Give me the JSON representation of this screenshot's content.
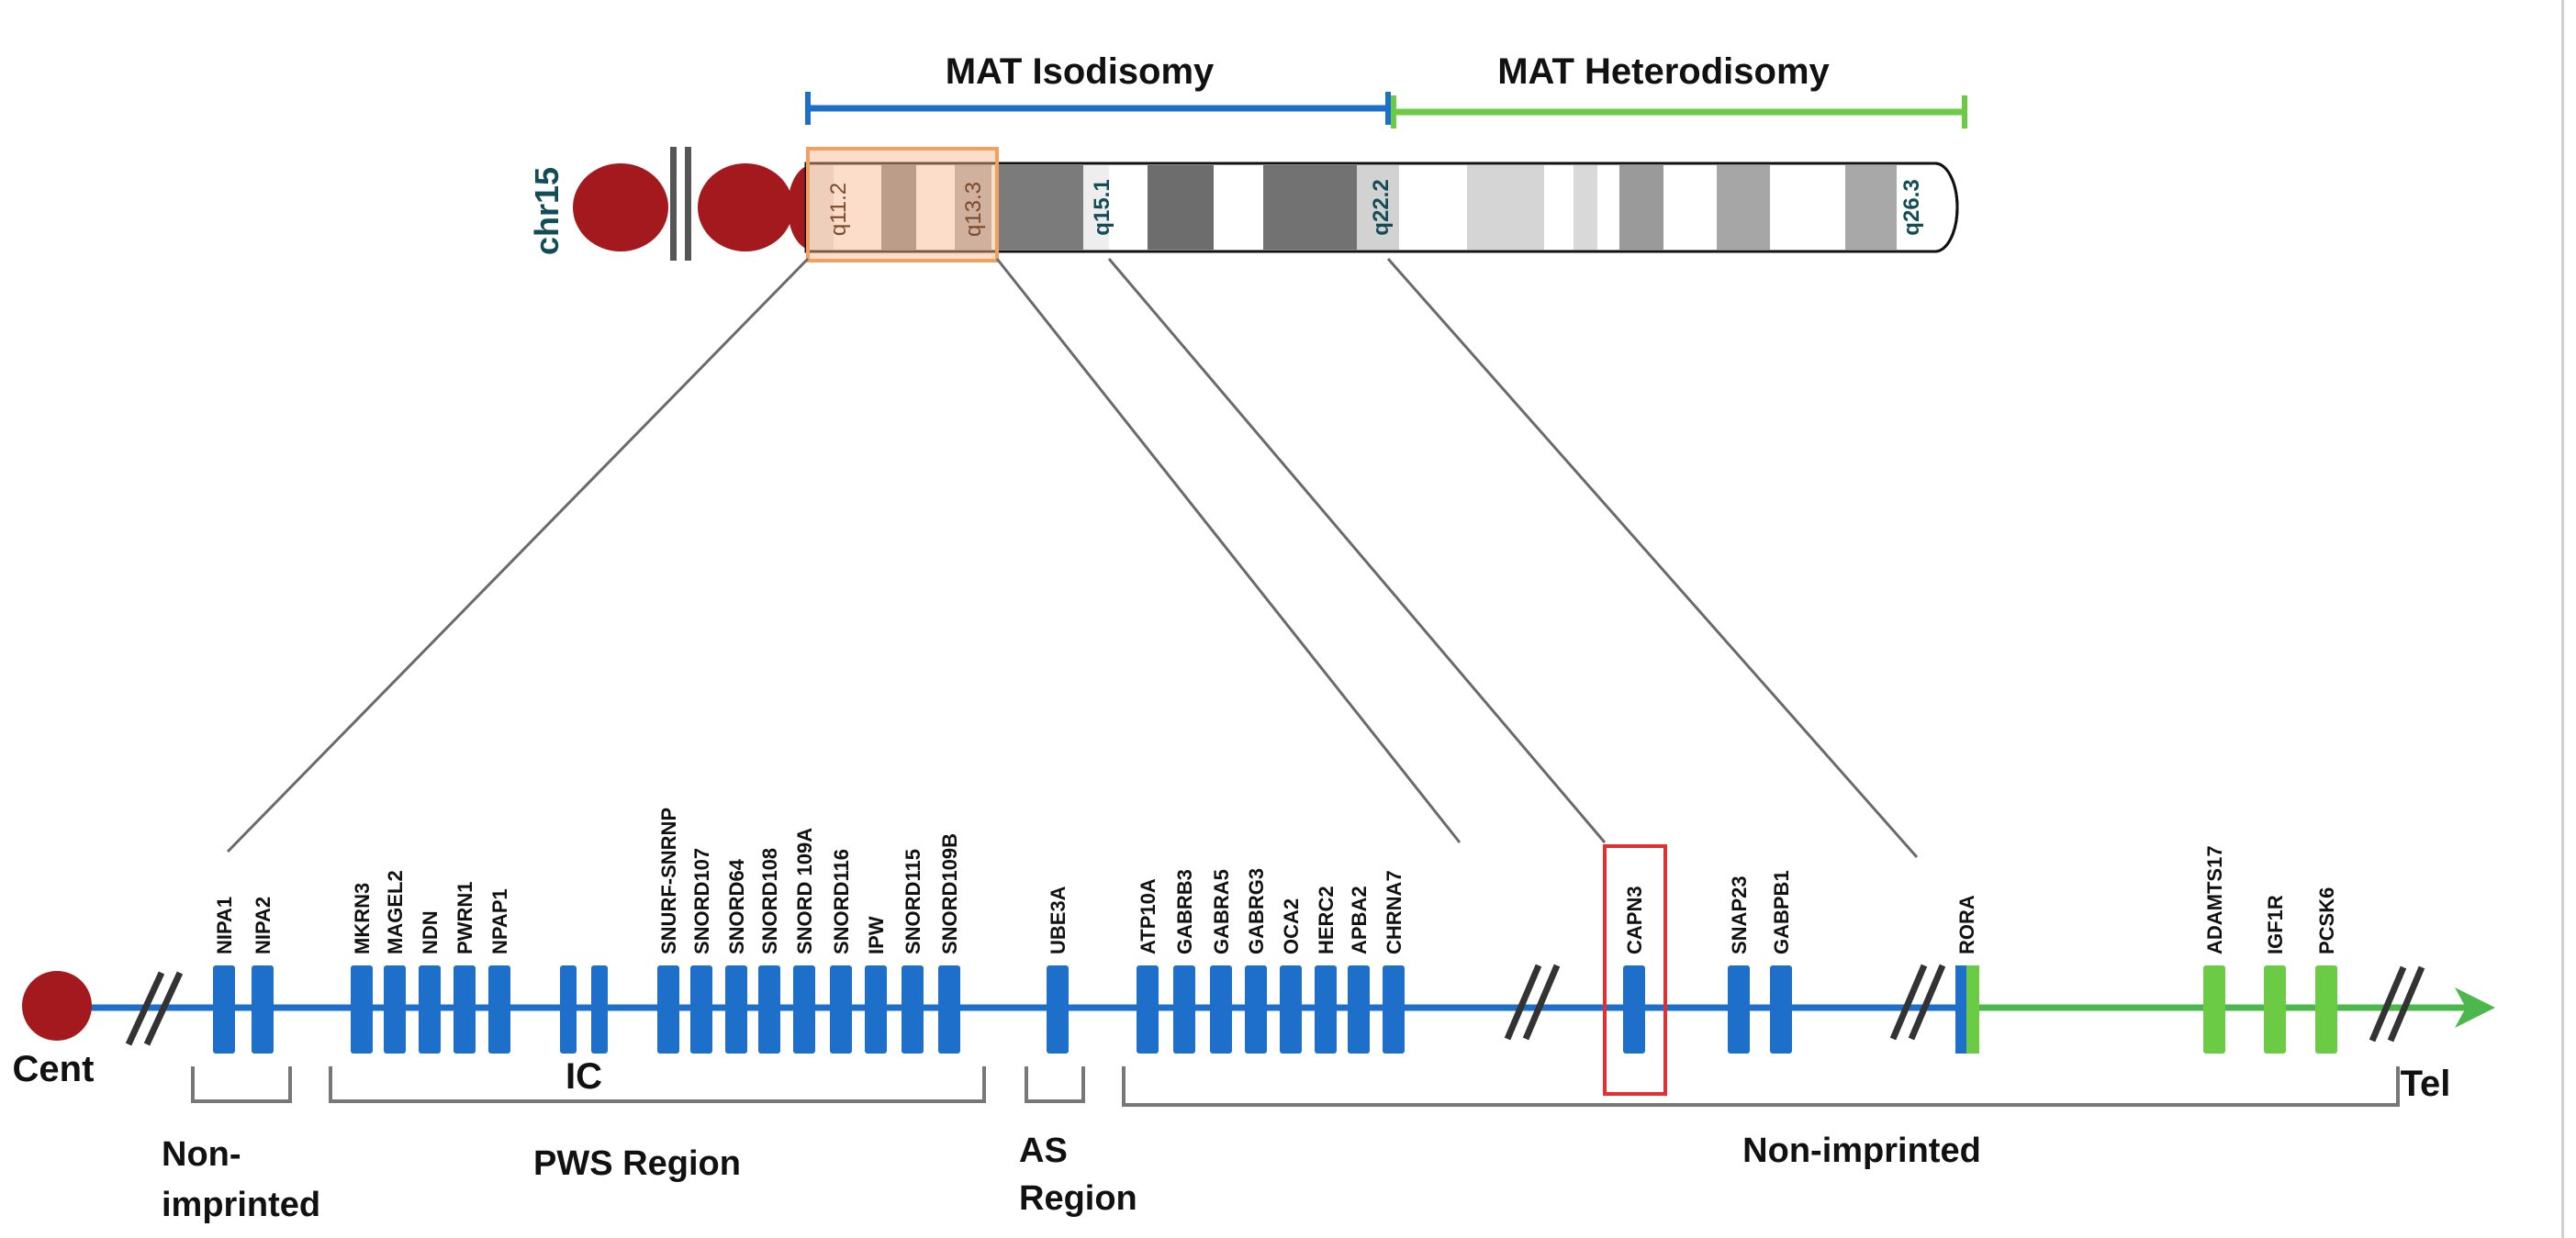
{
  "chromosome": {
    "name": "chr15",
    "bands": {
      "q11_2": "q11.2",
      "q13_3": "q13.3",
      "q15_1": "q15.1",
      "q22_2": "q22.2",
      "q26_3": "q26.3"
    }
  },
  "disomy": {
    "isodisomy": {
      "label": "MAT Isodisomy",
      "color": "#1d6fc9"
    },
    "heterodisomy": {
      "label": "MAT Heterodisomy",
      "color": "#6ccb45"
    }
  },
  "map": {
    "cent": "Cent",
    "tel": "Tel",
    "ic": "IC",
    "genes": {
      "nipa1": "NIPA1",
      "nipa2": "NIPA2",
      "mkrn3": "MKRN3",
      "magel2": "MAGEL2",
      "ndn": "NDN",
      "pwrn1": "PWRN1",
      "npap1": "NPAP1",
      "snurf": "SNURF-SNRNP",
      "snord107": "SNORD107",
      "snord64": "SNORD64",
      "snord108": "SNORD108",
      "snord109a": "SNORD 109A",
      "snord116": "SNORD116",
      "ipw": "IPW",
      "snord115": "SNORD115",
      "snord109b": "SNORD109B",
      "ube3a": "UBE3A",
      "atp10a": "ATP10A",
      "gabrb3": "GABRB3",
      "gabra5": "GABRA5",
      "gabrg3": "GABRG3",
      "oca2": "OCA2",
      "herc2": "HERC2",
      "apba2": "APBA2",
      "chrna7": "CHRNA7",
      "capn3": "CAPN3",
      "snap23": "SNAP23",
      "gabpb1": "GABPB1",
      "rora": "RORA",
      "adamts17": "ADAMTS17",
      "igf1r": "IGF1R",
      "pcsk6": "PCSK6"
    },
    "regions": {
      "nonimp1_a": "Non-",
      "nonimp1_b": "imprinted",
      "pws": "PWS Region",
      "as_a": "AS",
      "as_b": "Region",
      "nonimp2": "Non-imprinted"
    },
    "colors": {
      "blue": "#1d6fc9",
      "green": "#6ccb45",
      "red": "#a3191e",
      "highlight": "#e03030"
    }
  }
}
